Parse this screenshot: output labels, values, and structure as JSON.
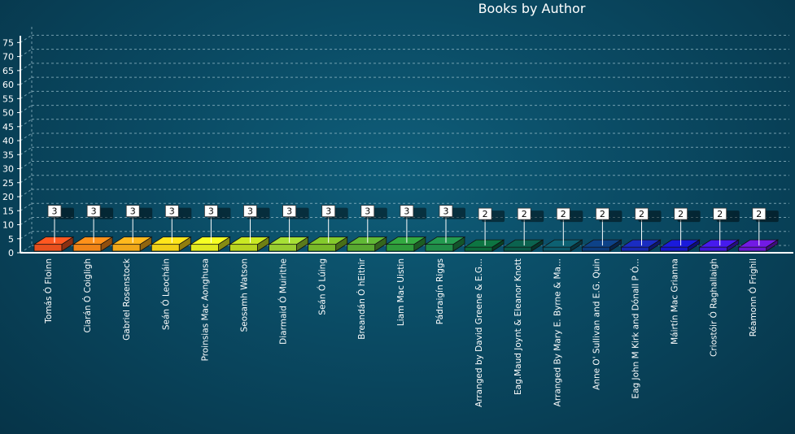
{
  "chart_data": {
    "type": "bar",
    "title": "Books by Author",
    "xlabel": "",
    "ylabel": "",
    "ylim": [
      0,
      78
    ],
    "yticks": [
      0,
      5,
      10,
      15,
      20,
      25,
      30,
      35,
      40,
      45,
      50,
      55,
      60,
      65,
      70,
      75
    ],
    "grid": true,
    "categories": [
      "Tomás Ó Floinn",
      "Ciarán Ó Coigligh",
      "Gabriel Rosenstock",
      "Seán Ó Leocháin",
      "Proinsias Mac Aonghusa",
      "Seosamh Watson",
      "Diarmaid Ó Muirithe",
      "Seán Ó Lúing",
      "Breandán Ó hEithir",
      "Liam Mac Uistin",
      "Pádraigín Riggs",
      "Arranged by David Greene & E.G...",
      "Eag.Maud Joynt & Eleanor Knott",
      "Arranged By Mary E. Byrne & Ma...",
      "Anne O' Sullivan and E.G. Quin",
      "Eag John M Kirk and Dónall P Ó...",
      "Máirtín Mac Grianna",
      "Criostóir Ó Raghallaigh",
      "Réamonn Ó Frighil"
    ],
    "values": [
      3,
      3,
      3,
      3,
      3,
      3,
      3,
      3,
      3,
      3,
      3,
      2,
      2,
      2,
      2,
      2,
      2,
      2,
      2
    ],
    "colors": [
      "#e8501e",
      "#f08418",
      "#f0a81a",
      "#f0d018",
      "#e0e820",
      "#b8d420",
      "#98cc30",
      "#78b828",
      "#58a830",
      "#2e9a3a",
      "#208c48",
      "#0c6a3c",
      "#0a5a48",
      "#0c5868",
      "#0c3c7c",
      "#1828b0",
      "#1818c8",
      "#4018d8",
      "#6818d0"
    ]
  }
}
